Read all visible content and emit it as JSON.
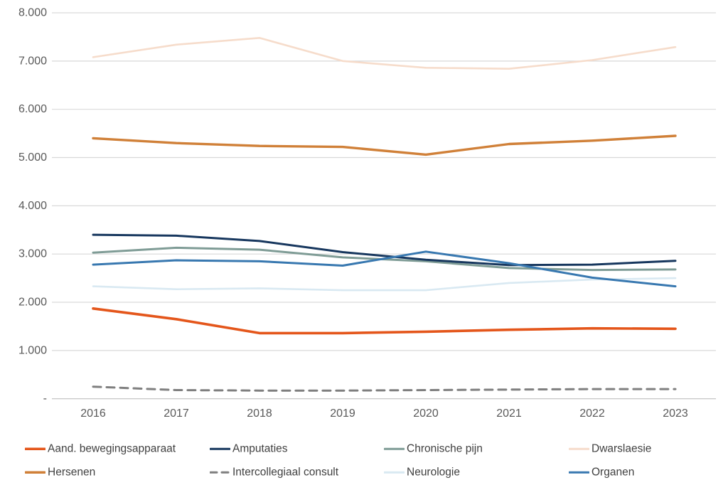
{
  "chart_data": {
    "type": "line",
    "title": "",
    "xlabel": "",
    "ylabel": "",
    "x_tick_labels": [
      "2016",
      "2017",
      "2018",
      "2019",
      "2020",
      "2021",
      "2022",
      "2023"
    ],
    "y_ticks": [
      {
        "value": 0,
        "label": "-"
      },
      {
        "value": 1000,
        "label": "1.000"
      },
      {
        "value": 2000,
        "label": "2.000"
      },
      {
        "value": 3000,
        "label": "3.000"
      },
      {
        "value": 4000,
        "label": "4.000"
      },
      {
        "value": 5000,
        "label": "5.000"
      },
      {
        "value": 6000,
        "label": "6.000"
      },
      {
        "value": 7000,
        "label": "7.000"
      },
      {
        "value": 8000,
        "label": "8.000"
      }
    ],
    "ylim": [
      0,
      8000
    ],
    "grid": "horizontal-only",
    "legend_position": "bottom",
    "series": [
      {
        "name": "Aand. bewegingsapparaat",
        "color": "#E4561B",
        "dash": "solid",
        "width": 3.6,
        "values": [
          1870,
          1650,
          1360,
          1360,
          1390,
          1430,
          1460,
          1450
        ]
      },
      {
        "name": "Amputaties",
        "color": "#17375E",
        "dash": "solid",
        "width": 3.0,
        "values": [
          3400,
          3380,
          3270,
          3040,
          2880,
          2770,
          2780,
          2860
        ]
      },
      {
        "name": "Chronische pijn",
        "color": "#7F9C96",
        "dash": "solid",
        "width": 3.0,
        "values": [
          3030,
          3130,
          3090,
          2930,
          2850,
          2710,
          2670,
          2680
        ]
      },
      {
        "name": "Dwarslaesie",
        "color": "#F6DCCB",
        "dash": "solid",
        "width": 2.6,
        "values": [
          7080,
          7340,
          7480,
          7000,
          6860,
          6840,
          7020,
          7290
        ]
      },
      {
        "name": "Hersenen",
        "color": "#D08038",
        "dash": "solid",
        "width": 3.4,
        "values": [
          5400,
          5300,
          5240,
          5220,
          5060,
          5280,
          5350,
          5450
        ]
      },
      {
        "name": "Intercollegiaal consult",
        "color": "#7F7F7F",
        "dash": "dashed",
        "width": 3.0,
        "values": [
          250,
          180,
          170,
          170,
          180,
          190,
          200,
          200
        ]
      },
      {
        "name": "Neurologie",
        "color": "#D9E9F2",
        "dash": "solid",
        "width": 2.6,
        "values": [
          2330,
          2270,
          2290,
          2250,
          2250,
          2400,
          2470,
          2500
        ]
      },
      {
        "name": "Organen",
        "color": "#3878B0",
        "dash": "solid",
        "width": 3.0,
        "values": [
          2780,
          2870,
          2850,
          2760,
          3050,
          2810,
          2510,
          2330
        ]
      }
    ],
    "colors": {
      "gridline": "#D9D9D9",
      "baseline": "#BFBFBF",
      "axis_text": "#595959",
      "legend_text": "#404040",
      "background": "#FFFFFF"
    }
  }
}
